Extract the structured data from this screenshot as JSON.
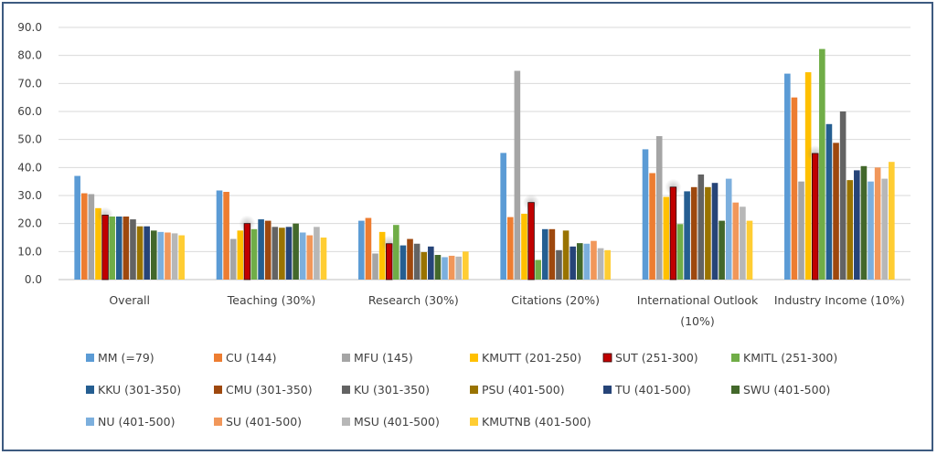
{
  "chart_data": {
    "type": "bar",
    "title": "",
    "xlabel": "",
    "ylabel": "",
    "ylim": [
      0,
      90
    ],
    "yticks": [
      "0.0",
      "10.0",
      "20.0",
      "30.0",
      "40.0",
      "50.0",
      "60.0",
      "70.0",
      "80.0",
      "90.0"
    ],
    "grid": true,
    "legend_position": "bottom",
    "categories": [
      [
        "Overall"
      ],
      [
        "Teaching  (30%)"
      ],
      [
        "Research (30%)"
      ],
      [
        "Citations (20%)"
      ],
      [
        "International Outlook",
        "(10%)"
      ],
      [
        "Industry Income  (10%)"
      ]
    ],
    "series": [
      {
        "name": "MM (=79)",
        "color": "#5b9bd5",
        "values": [
          37.0,
          31.8,
          21.0,
          45.2,
          46.5,
          73.5
        ]
      },
      {
        "name": "CU (144)",
        "color": "#ed7d31",
        "values": [
          30.8,
          31.3,
          22.0,
          22.3,
          38.0,
          65.0
        ]
      },
      {
        "name": "MFU (145)",
        "color": "#a5a5a5",
        "values": [
          30.5,
          14.5,
          9.3,
          74.5,
          51.2,
          35.0
        ]
      },
      {
        "name": "KMUTT (201-250)",
        "color": "#ffc000",
        "values": [
          25.5,
          17.5,
          17.0,
          23.5,
          29.5,
          74.0
        ]
      },
      {
        "name": "SUT (251-300)",
        "color": "#c00000",
        "values": [
          23.0,
          20.0,
          12.8,
          27.5,
          33.0,
          45.0
        ]
      },
      {
        "name": "KMITL (251-300)",
        "color": "#70ad47",
        "values": [
          22.5,
          18.0,
          19.5,
          7.0,
          19.8,
          82.3
        ]
      },
      {
        "name": "KKU (301-350)",
        "color": "#255e91",
        "values": [
          22.5,
          21.5,
          12.2,
          18.0,
          31.5,
          55.5
        ]
      },
      {
        "name": "CMU (301-350)",
        "color": "#9e480e",
        "values": [
          22.5,
          21.0,
          14.5,
          18.0,
          33.0,
          48.8
        ]
      },
      {
        "name": "KU (301-350)",
        "color": "#636363",
        "values": [
          21.5,
          18.8,
          12.8,
          10.5,
          37.5,
          60.0
        ]
      },
      {
        "name": "PSU (401-500)",
        "color": "#997300",
        "values": [
          19.0,
          18.5,
          9.8,
          17.5,
          33.0,
          35.5
        ]
      },
      {
        "name": "TU (401-500)",
        "color": "#264478",
        "values": [
          19.0,
          18.8,
          11.8,
          11.8,
          34.5,
          39.0
        ]
      },
      {
        "name": "SWU (401-500)",
        "color": "#43682b",
        "values": [
          17.5,
          20.0,
          8.8,
          13.0,
          21.0,
          40.5
        ]
      },
      {
        "name": "NU (401-500)",
        "color": "#7cafdd",
        "values": [
          17.0,
          16.8,
          8.0,
          12.8,
          36.0,
          35.0
        ]
      },
      {
        "name": "SU (401-500)",
        "color": "#f1975a",
        "values": [
          16.8,
          15.8,
          8.5,
          13.8,
          27.5,
          40.0
        ]
      },
      {
        "name": "MSU (401-500)",
        "color": "#b7b7b7",
        "values": [
          16.5,
          18.8,
          8.2,
          11.2,
          26.0,
          36.0
        ]
      },
      {
        "name": "KMUTNB (401-500)",
        "color": "#ffcd33",
        "values": [
          15.8,
          15.0,
          10.0,
          10.5,
          21.0,
          42.0
        ]
      }
    ],
    "highlight_series": "SUT (251-300)"
  }
}
